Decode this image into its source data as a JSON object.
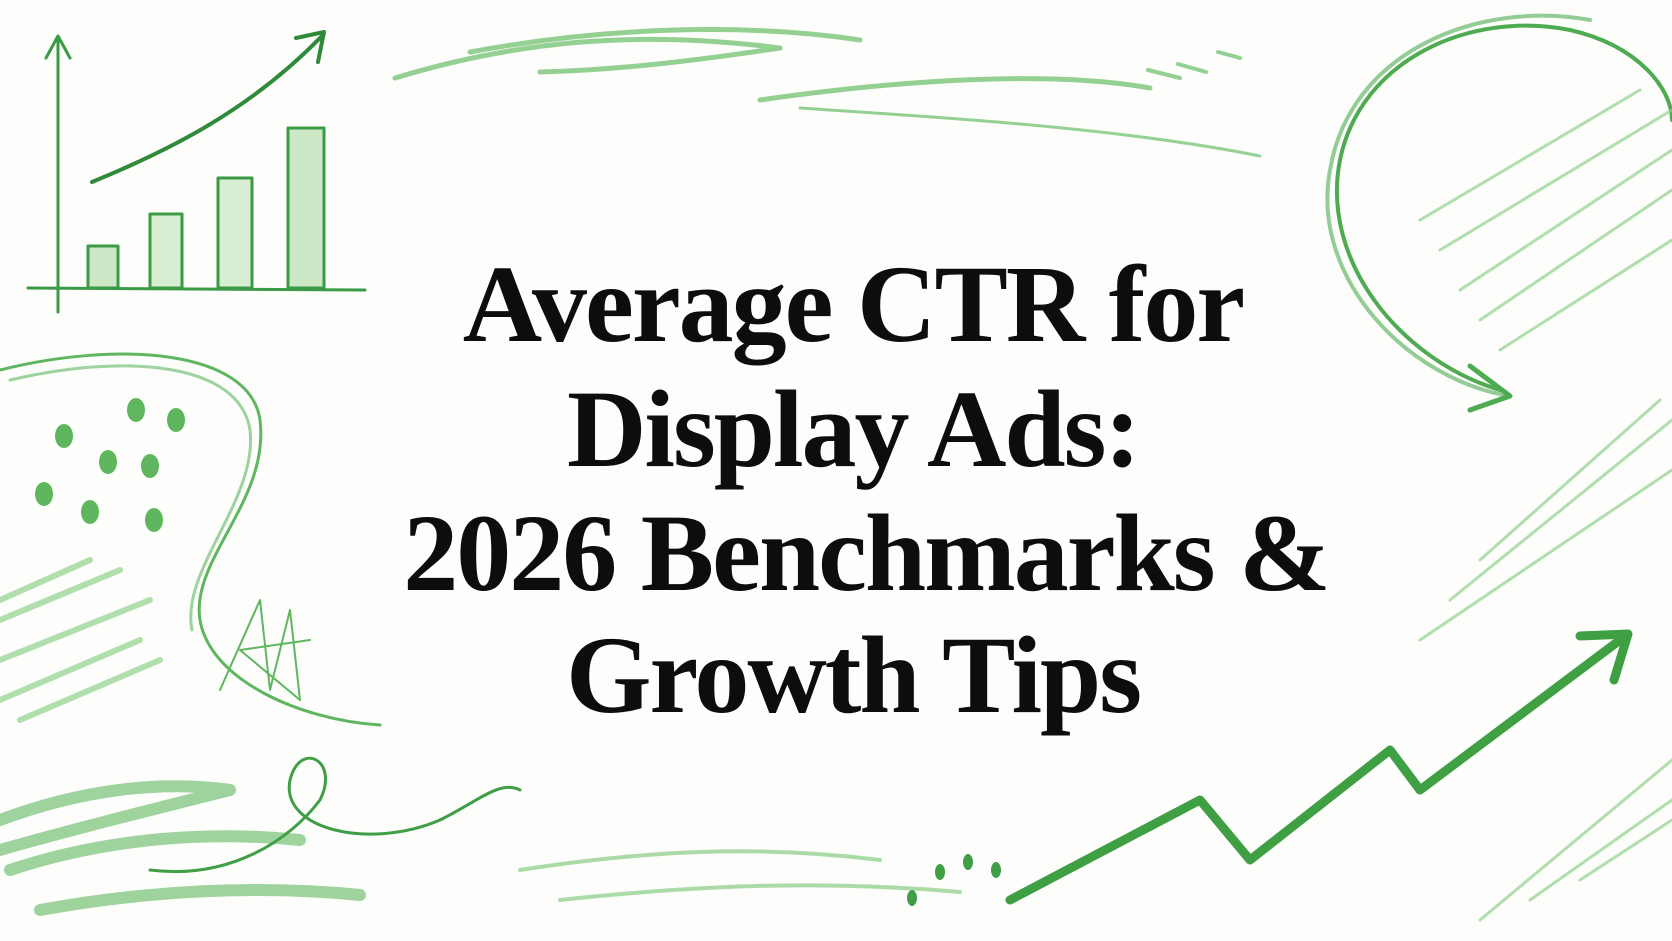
{
  "title": {
    "lines": [
      "Average CTR for",
      "Display Ads:",
      "2026 Benchmarks &",
      "Growth Tips"
    ]
  }
}
